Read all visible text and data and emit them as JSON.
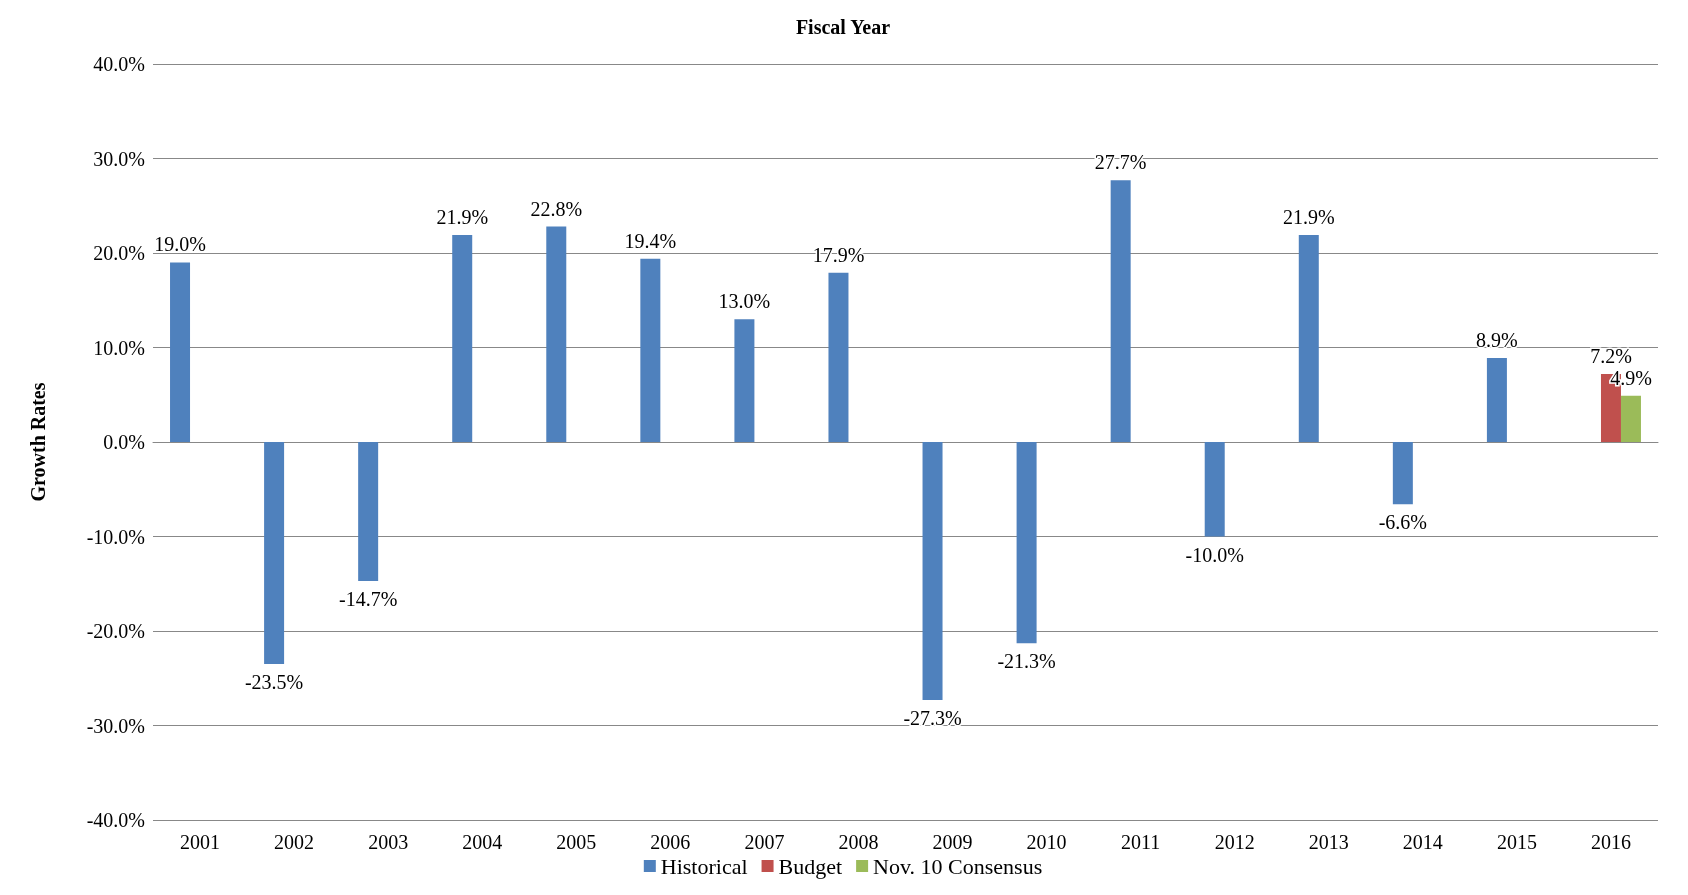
{
  "chart_data": {
    "type": "bar",
    "title": "Fiscal Year",
    "ylabel": "Growth Rates",
    "categories": [
      "2001",
      "2002",
      "2003",
      "2004",
      "2005",
      "2006",
      "2007",
      "2008",
      "2009",
      "2010",
      "2011",
      "2012",
      "2013",
      "2014",
      "2015",
      "2016"
    ],
    "series": [
      {
        "name": "Historical",
        "color": "#4f81bd",
        "values": [
          19.0,
          -23.5,
          -14.7,
          21.9,
          22.8,
          19.4,
          13.0,
          17.9,
          -27.3,
          -21.3,
          27.7,
          -10.0,
          21.9,
          -6.6,
          8.9,
          null
        ],
        "value_labels": [
          "19.0%",
          "-23.5%",
          "-14.7%",
          "21.9%",
          "22.8%",
          "19.4%",
          "13.0%",
          "17.9%",
          "-27.3%",
          "-21.3%",
          "27.7%",
          "-10.0%",
          "21.9%",
          "-6.6%",
          "8.9%",
          null
        ]
      },
      {
        "name": "Budget",
        "color": "#c0504d",
        "values": [
          null,
          null,
          null,
          null,
          null,
          null,
          null,
          null,
          null,
          null,
          null,
          null,
          null,
          null,
          null,
          7.2
        ],
        "value_labels": [
          null,
          null,
          null,
          null,
          null,
          null,
          null,
          null,
          null,
          null,
          null,
          null,
          null,
          null,
          null,
          "7.2%"
        ]
      },
      {
        "name": "Nov. 10 Consensus",
        "color": "#9bbb59",
        "values": [
          null,
          null,
          null,
          null,
          null,
          null,
          null,
          null,
          null,
          null,
          null,
          null,
          null,
          null,
          null,
          4.9
        ],
        "value_labels": [
          null,
          null,
          null,
          null,
          null,
          null,
          null,
          null,
          null,
          null,
          null,
          null,
          null,
          null,
          null,
          "4.9%"
        ]
      }
    ],
    "ylim": [
      -40,
      40
    ],
    "yticks": [
      {
        "value": -40,
        "label": "-40.0%"
      },
      {
        "value": -30,
        "label": "-30.0%"
      },
      {
        "value": -20,
        "label": "-20.0%"
      },
      {
        "value": -10,
        "label": "-10.0%"
      },
      {
        "value": 0,
        "label": "0.0%"
      },
      {
        "value": 10,
        "label": "10.0%"
      },
      {
        "value": 20,
        "label": "20.0%"
      },
      {
        "value": 30,
        "label": "30.0%"
      },
      {
        "value": 40,
        "label": "40.0%"
      }
    ],
    "grid": "y",
    "legend": "bottom"
  }
}
